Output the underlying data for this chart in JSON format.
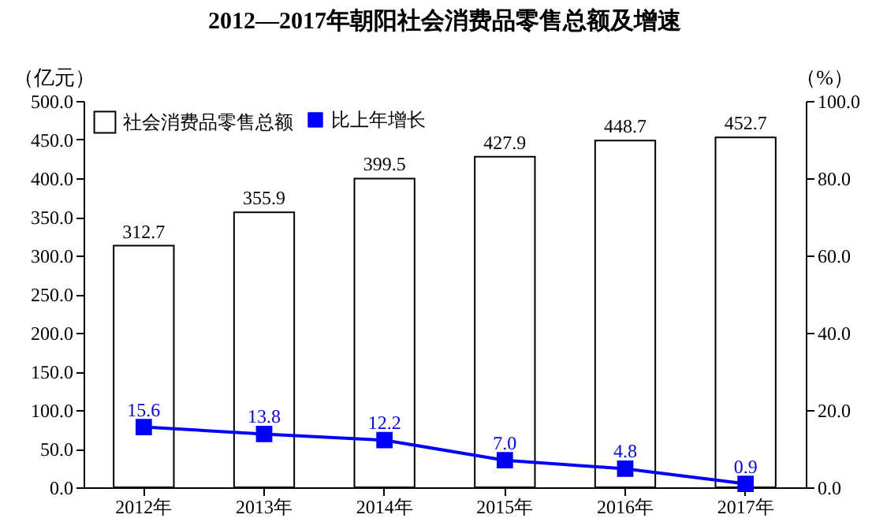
{
  "chart_data": {
    "type": "bar",
    "title": "2012—2017年朝阳社会消费品零售总额及增速",
    "ylabel": "（亿元）",
    "y2label": "（%）",
    "categories": [
      "2012年",
      "2013年",
      "2014年",
      "2015年",
      "2016年",
      "2017年"
    ],
    "series": [
      {
        "name": "社会消费品零售总额",
        "color": "#ffffff",
        "values": [
          312.7,
          355.9,
          399.5,
          427.9,
          448.7,
          452.7
        ],
        "value_labels": [
          "312.7",
          "355.9",
          "399.5",
          "427.9",
          "448.7",
          "452.7"
        ]
      },
      {
        "name": "比上年增长",
        "type": "line",
        "axis": "y2",
        "color": "#0000ff",
        "values": [
          15.6,
          13.8,
          12.2,
          7.0,
          4.8,
          0.9
        ],
        "value_labels": [
          "15.6",
          "13.8",
          "12.2",
          "7.0",
          "4.8",
          "0.9"
        ]
      }
    ],
    "ylim": [
      0,
      500
    ],
    "yticks": [
      {
        "value": 0,
        "label": "0.0"
      },
      {
        "value": 50,
        "label": "50.0"
      },
      {
        "value": 100,
        "label": "100.0"
      },
      {
        "value": 150,
        "label": "150.0"
      },
      {
        "value": 200,
        "label": "200.0"
      },
      {
        "value": 250,
        "label": "250.0"
      },
      {
        "value": 300,
        "label": "300.0"
      },
      {
        "value": 350,
        "label": "350.0"
      },
      {
        "value": 400,
        "label": "400.0"
      },
      {
        "value": 450,
        "label": "450.0"
      },
      {
        "value": 500,
        "label": "500.0"
      }
    ],
    "y2lim": [
      0,
      100
    ],
    "y2ticks": [
      {
        "value": 0,
        "label": "0.0"
      },
      {
        "value": 20,
        "label": "20.0"
      },
      {
        "value": 40,
        "label": "40.0"
      },
      {
        "value": 60,
        "label": "60.0"
      },
      {
        "value": 80,
        "label": "80.0"
      },
      {
        "value": 100,
        "label": "100.0"
      }
    ],
    "legend": "top left",
    "marker": "square",
    "line_style": "solid"
  }
}
